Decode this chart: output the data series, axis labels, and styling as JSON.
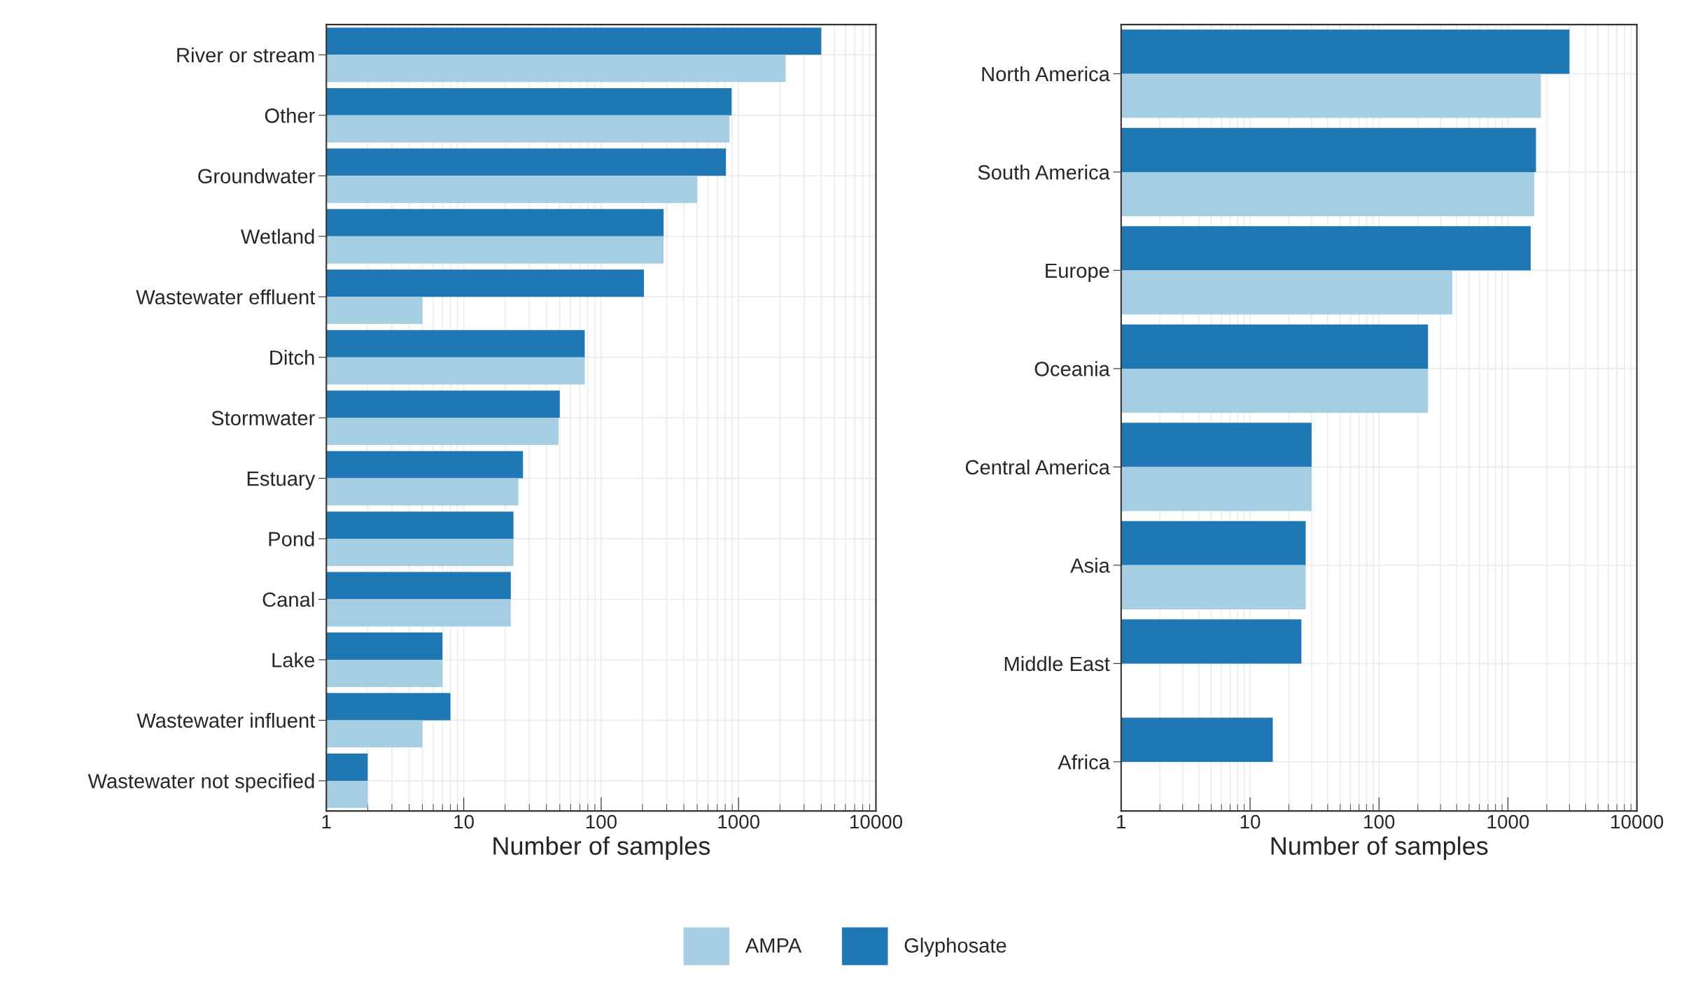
{
  "chart_data": [
    {
      "type": "bar",
      "orientation": "horizontal",
      "log": "x",
      "xlabel": "Number of samples",
      "categories": [
        "River or stream",
        "Other",
        "Groundwater",
        "Wetland",
        "Wastewater effluent",
        "Ditch",
        "Stormwater",
        "Estuary",
        "Pond",
        "Canal",
        "Lake",
        "Wastewater influent",
        "Wastewater not specified"
      ],
      "series": [
        {
          "name": "Glyphosate",
          "color": "#1f78b4",
          "values": [
            4000,
            890,
            810,
            285,
            205,
            76,
            50,
            27,
            23,
            22,
            7,
            8,
            2
          ]
        },
        {
          "name": "AMPA",
          "color": "#a6cee3",
          "values": [
            2200,
            860,
            500,
            285,
            5,
            76,
            49,
            25,
            23,
            22,
            7,
            5,
            2
          ]
        }
      ],
      "xlim": [
        1,
        10000
      ],
      "xticks": [
        1,
        10,
        100,
        1000,
        10000
      ],
      "grid": true,
      "legend": "bottom"
    },
    {
      "type": "bar",
      "orientation": "horizontal",
      "log": "x",
      "xlabel": "Number of samples",
      "categories": [
        "North America",
        "South America",
        "Europe",
        "Oceania",
        "Central America",
        "Asia",
        "Middle East",
        "Africa"
      ],
      "series": [
        {
          "name": "Glyphosate",
          "color": "#1f78b4",
          "values": [
            3000,
            1650,
            1500,
            240,
            30,
            27,
            25,
            15
          ]
        },
        {
          "name": "AMPA",
          "color": "#a6cee3",
          "values": [
            1800,
            1600,
            370,
            240,
            30,
            27,
            null,
            null
          ]
        }
      ],
      "xlim": [
        1,
        10000
      ],
      "xticks": [
        1,
        10,
        100,
        1000,
        10000
      ],
      "grid": true
    }
  ]
}
